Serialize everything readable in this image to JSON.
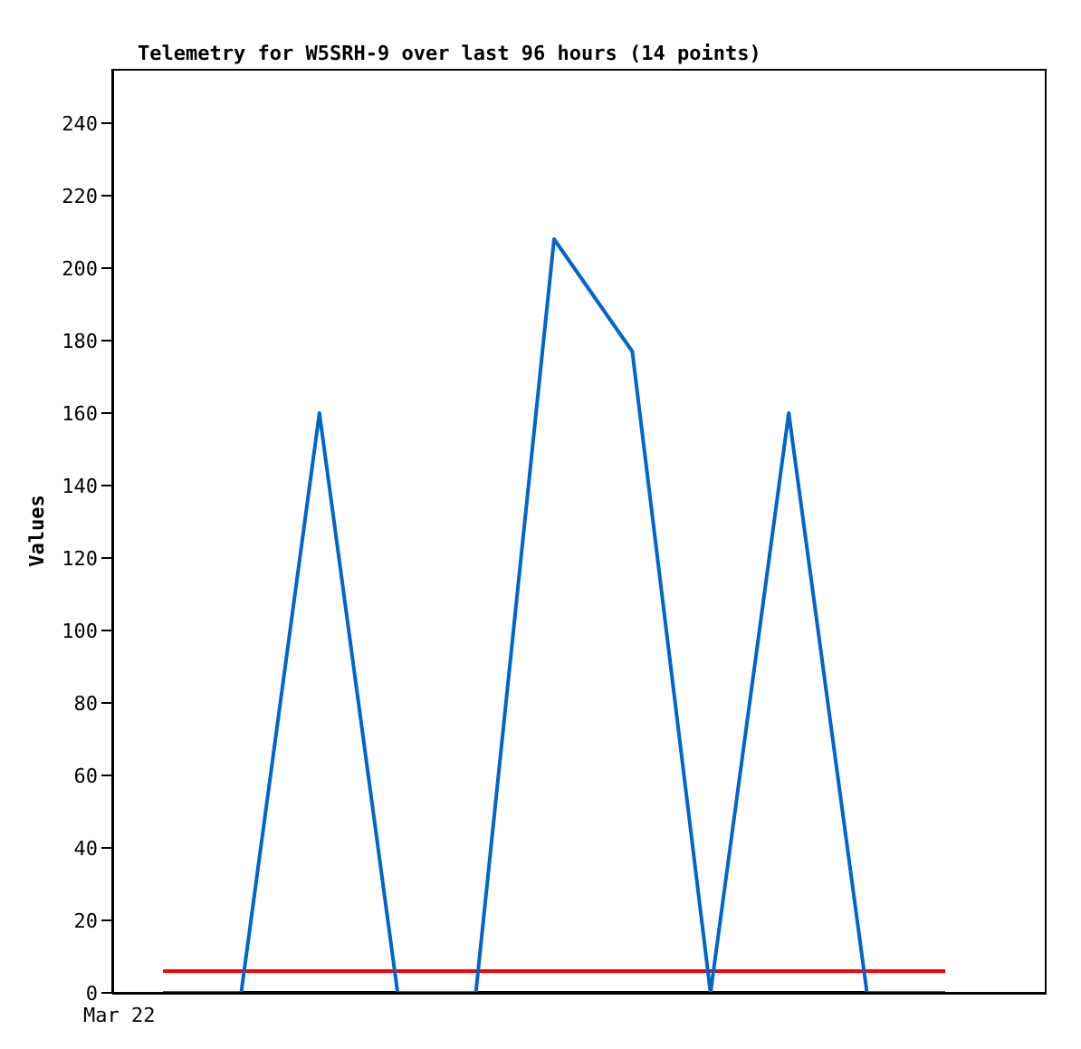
{
  "chart_data": {
    "type": "line",
    "title": "Telemetry for W5SRH-9 over last 96 hours (14 points)",
    "ylabel": "Values",
    "annotations": [
      "Mar 22"
    ],
    "categories": [
      null,
      null,
      null,
      null,
      null,
      null,
      null,
      null,
      null,
      null,
      null
    ],
    "ylim": [
      0,
      255
    ],
    "yticks": [
      0,
      20,
      40,
      60,
      80,
      100,
      120,
      140,
      160,
      180,
      200,
      220,
      240
    ],
    "grid": false,
    "legend": false,
    "marker": "none",
    "line_style": "solid",
    "series": [
      {
        "color": "#000000",
        "values": [
          0,
          0,
          0,
          0,
          0,
          0,
          0,
          0,
          0,
          0,
          0
        ]
      },
      {
        "color": "#ff0000",
        "values": [
          6,
          6,
          6,
          6,
          6,
          6,
          6,
          6,
          6,
          6,
          6
        ]
      },
      {
        "color": "#0066cc",
        "values": [
          0,
          0,
          160,
          0,
          0,
          208,
          177,
          0,
          160,
          0,
          0
        ]
      }
    ]
  }
}
